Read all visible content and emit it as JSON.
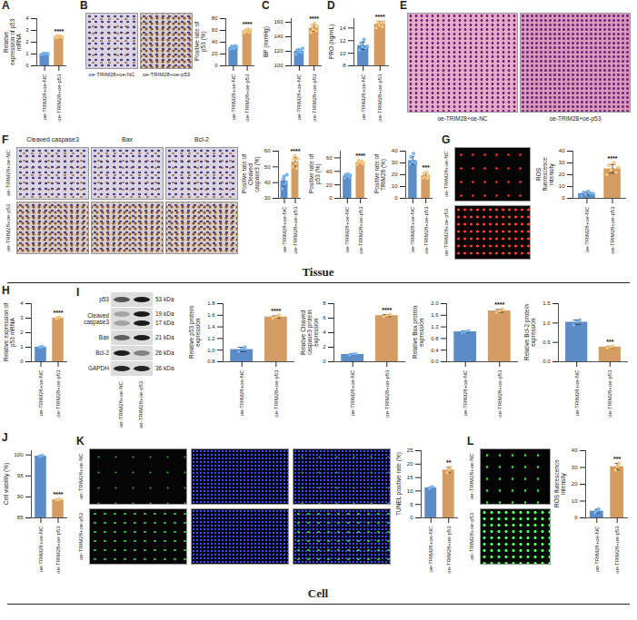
{
  "chart_data": [
    {
      "type": "bar",
      "panel": "A",
      "y_label": "Relative expression of p53 mRNA",
      "categories": [
        "oe-TRIM28+oe-NC",
        "oe-TRIM28+oe-p53"
      ],
      "values": [
        1.0,
        2.45
      ],
      "errors": [
        0.05,
        0.07
      ],
      "points": [
        [
          0.92,
          1.0,
          1.05,
          0.97,
          1.03,
          1.02
        ],
        [
          2.35,
          2.55,
          2.4,
          2.5,
          2.45,
          2.42
        ]
      ],
      "colors": [
        "#5b8cc8",
        "#d49c62"
      ],
      "ylim": [
        0,
        4
      ],
      "yticks": [
        0,
        1,
        2,
        3,
        4
      ],
      "significance": {
        "category": "oe-TRIM28+oe-p53",
        "label": "****"
      }
    },
    {
      "type": "bar",
      "y_label": "Positive rate of p53 (%)",
      "categories": [
        "oe-TRIM28+oe-NC",
        "oe-TRIM28+oe-p53"
      ],
      "values": [
        31,
        59
      ],
      "errors": [
        2.3,
        2.3
      ],
      "points": [
        [
          28,
          33,
          30,
          29,
          34,
          32
        ],
        [
          56,
          60,
          58,
          62,
          57,
          61
        ]
      ],
      "colors": [
        "#5b8cc8",
        "#d49c62"
      ],
      "ylim": [
        0,
        80
      ],
      "yticks": [
        0,
        20,
        40,
        60,
        80
      ],
      "significance": {
        "category": "oe-TRIM28+oe-p53",
        "label": "****"
      }
    },
    {
      "type": "bar",
      "panel": "C",
      "y_label": "BP (mmHg)",
      "categories": [
        "oe-TRIM28+oe-NC",
        "oe-TRIM28+oe-p53"
      ],
      "values": [
        120,
        152
      ],
      "errors": [
        2.8,
        4.5
      ],
      "points": [
        [
          116,
          122,
          119,
          121,
          118,
          124
        ],
        [
          146,
          156,
          150,
          158,
          148,
          154
        ]
      ],
      "colors": [
        "#5b8cc8",
        "#d49c62"
      ],
      "ylim": [
        100,
        165
      ],
      "yticks": [
        100,
        120,
        140,
        160
      ],
      "significance": {
        "category": "oe-TRIM28+oe-p53",
        "label": "****"
      }
    },
    {
      "type": "bar",
      "panel": "D",
      "y_label": "PRO (ng/mL)",
      "categories": [
        "oe-TRIM28+oe-NC",
        "oe-TRIM28+oe-p53"
      ],
      "values": [
        11.2,
        14.6
      ],
      "errors": [
        0.6,
        0.4
      ],
      "points": [
        [
          10.5,
          11.6,
          11.0,
          12.2,
          10.8,
          11.1
        ],
        [
          14.0,
          15.0,
          14.4,
          14.8,
          14.2,
          15.0
        ]
      ],
      "colors": [
        "#5b8cc8",
        "#d49c62"
      ],
      "ylim": [
        8,
        15.5
      ],
      "yticks": [
        8,
        10,
        12,
        14
      ],
      "significance": {
        "category": "oe-TRIM28+oe-p53",
        "label": "****"
      }
    },
    {
      "type": "bar",
      "y_label": "Positive rate of Cleaved caspase3 (%)",
      "categories": [
        "oe-TRIM28+oe-NC",
        "oe-TRIM28+oe-p53"
      ],
      "values": [
        41,
        53
      ],
      "errors": [
        3.2,
        3.0
      ],
      "points": [
        [
          36,
          42,
          44,
          39,
          40,
          45
        ],
        [
          50,
          55,
          57,
          52,
          49,
          55
        ]
      ],
      "colors": [
        "#5b8cc8",
        "#d49c62"
      ],
      "ylim": [
        30,
        60
      ],
      "yticks": [
        30,
        40,
        50,
        60
      ],
      "significance": {
        "category": "oe-TRIM28+oe-p53",
        "label": "****"
      }
    },
    {
      "type": "bar",
      "y_label": "Positive rate of p53 (%)",
      "categories": [
        "oe-TRIM28+oe-NC",
        "oe-TRIM28+oe-p53"
      ],
      "values": [
        33,
        53
      ],
      "errors": [
        2.3,
        2.3
      ],
      "points": [
        [
          30,
          35,
          33,
          36,
          31,
          34
        ],
        [
          50,
          56,
          53,
          55,
          51,
          53
        ]
      ],
      "colors": [
        "#5b8cc8",
        "#d49c62"
      ],
      "ylim": [
        0,
        70
      ],
      "yticks": [
        0,
        20,
        40,
        60
      ],
      "significance": {
        "category": "oe-TRIM28+oe-p53",
        "label": "****"
      }
    },
    {
      "type": "bar",
      "y_label": "Positive rate of TRIM28 (%)",
      "categories": [
        "oe-TRIM28+oe-NC",
        "oe-TRIM28+oe-p53"
      ],
      "values": [
        32,
        19
      ],
      "errors": [
        3.3,
        2.0
      ],
      "points": [
        [
          29,
          35,
          31,
          38,
          30,
          30
        ],
        [
          17,
          21,
          18,
          22,
          17,
          19
        ]
      ],
      "colors": [
        "#5b8cc8",
        "#d49c62"
      ],
      "ylim": [
        0,
        40
      ],
      "yticks": [
        0,
        10,
        20,
        30,
        40
      ],
      "significance": {
        "category": "oe-TRIM28+oe-p53",
        "label": "***"
      }
    },
    {
      "type": "bar",
      "y_label": "ROS fluorescence intensity",
      "categories": [
        "oe-TRIM28+oe-NC",
        "oe-TRIM28+oe-p53"
      ],
      "values": [
        4,
        25
      ],
      "errors": [
        1.4,
        3.7
      ],
      "points": [
        [
          2,
          5,
          3,
          6,
          4,
          4
        ],
        [
          20,
          28,
          24,
          30,
          22,
          26
        ]
      ],
      "colors": [
        "#5b8cc8",
        "#d49c62"
      ],
      "ylim": [
        0,
        40
      ],
      "yticks": [
        0,
        10,
        20,
        30,
        40
      ],
      "significance": {
        "category": "oe-TRIM28+oe-p53",
        "label": "****"
      }
    },
    {
      "type": "bar",
      "panel": "H",
      "y_label": "Relative expression of p53 mRNA",
      "categories": [
        "oe-TRIM28+oe-NC",
        "oe-TRIM28+oe-p53"
      ],
      "values": [
        1.0,
        3.0
      ],
      "errors": [
        0.03,
        0.05
      ],
      "points": [
        [
          0.97,
          1.0,
          1.03
        ],
        [
          2.95,
          3.02,
          3.05
        ]
      ],
      "colors": [
        "#5b8cc8",
        "#d49c62"
      ],
      "ylim": [
        0,
        4
      ],
      "yticks": [
        0,
        1,
        2,
        3,
        4
      ],
      "significance": {
        "category": "oe-TRIM28+oe-p53",
        "label": "****"
      }
    },
    {
      "type": "bar",
      "y_label": "Relative p53 protein expression",
      "categories": [
        "oe-TRIM28+oe-NC",
        "oe-TRIM28+oe-p53"
      ],
      "values": [
        1.01,
        1.57
      ],
      "errors": [
        0.04,
        0.02
      ],
      "points": [
        [
          0.97,
          1.02,
          1.05
        ],
        [
          1.55,
          1.57,
          1.6
        ]
      ],
      "colors": [
        "#5b8cc8",
        "#d49c62"
      ],
      "ylim": [
        0.8,
        1.8
      ],
      "yticks": [
        0.8,
        {
          "value": 1,
          "label": "1.0"
        },
        1.2,
        1.4,
        1.6,
        1.8
      ],
      "significance": {
        "category": "oe-TRIM28+oe-p53",
        "label": "****"
      }
    },
    {
      "type": "bar",
      "y_label": "Relative Cleaved caspase3 protein expression",
      "categories": [
        "oe-TRIM28+oe-NC",
        "oe-TRIM28+oe-p53"
      ],
      "values": [
        1.0,
        6.35
      ],
      "errors": [
        0.08,
        0.15
      ],
      "points": [
        [
          0.9,
          1.05,
          1.05
        ],
        [
          6.2,
          6.35,
          6.5
        ]
      ],
      "colors": [
        "#5b8cc8",
        "#d49c62"
      ],
      "ylim": [
        0,
        8
      ],
      "yticks": [
        0,
        2,
        4,
        6,
        8
      ],
      "significance": {
        "category": "oe-TRIM28+oe-p53",
        "label": "****"
      }
    },
    {
      "type": "bar",
      "y_label": "Relative Bax protein expression",
      "categories": [
        "oe-TRIM28+oe-NC",
        "oe-TRIM28+oe-p53"
      ],
      "values": [
        1.03,
        1.75
      ],
      "errors": [
        0.03,
        0.05
      ],
      "points": [
        [
          1.0,
          1.03,
          1.06
        ],
        [
          1.7,
          1.75,
          1.8
        ]
      ],
      "colors": [
        "#5b8cc8",
        "#d49c62"
      ],
      "ylim": [
        0,
        2
      ],
      "yticks": [
        {
          "value": 0,
          "label": "0.0"
        },
        0.4,
        0.8,
        1.2,
        1.6,
        {
          "value": 2,
          "label": "2.0"
        }
      ],
      "significance": {
        "category": "oe-TRIM28+oe-p53",
        "label": "****"
      }
    },
    {
      "type": "bar",
      "y_label": "Relative Bcl-2 protein expression",
      "categories": [
        "oe-TRIM28+oe-NC",
        "oe-TRIM28+oe-p53"
      ],
      "values": [
        1.02,
        0.38
      ],
      "errors": [
        0.06,
        0.02
      ],
      "points": [
        [
          0.95,
          1.03,
          1.08
        ],
        [
          0.36,
          0.38,
          0.4
        ]
      ],
      "colors": [
        "#5b8cc8",
        "#d49c62"
      ],
      "ylim": [
        0,
        1.5
      ],
      "yticks": [
        {
          "value": 0,
          "label": "0.0"
        },
        0.5,
        {
          "value": 1,
          "label": "1.0"
        },
        1.5
      ],
      "significance": {
        "category": "oe-TRIM28+oe-p53",
        "label": "***"
      }
    },
    {
      "type": "bar",
      "panel": "J",
      "y_label": "Cell viability (%)",
      "categories": [
        "oe-TRIM28+oe-NC",
        "oe-TRIM28+oe-p53"
      ],
      "values": [
        99.7,
        89.3
      ],
      "errors": [
        0.1,
        0.1
      ],
      "points": [
        [
          99.6,
          99.7,
          99.8
        ],
        [
          89.2,
          89.3,
          89.4
        ]
      ],
      "colors": [
        "#5b8cc8",
        "#d49c62"
      ],
      "ylim": [
        85,
        101
      ],
      "yticks": [
        85,
        90,
        95,
        100
      ],
      "significance": {
        "category": "oe-TRIM28+oe-p53",
        "label": "****"
      }
    },
    {
      "type": "bar",
      "y_label": "TUNEL positive rate (%)",
      "categories": [
        "oe-TRIM28+oe-NC",
        "oe-TRIM28+oe-p53"
      ],
      "values": [
        11.2,
        17.8
      ],
      "errors": [
        0.3,
        1.0
      ],
      "points": [
        [
          10.9,
          11.2,
          11.5
        ],
        [
          16.8,
          17.8,
          18.8
        ]
      ],
      "colors": [
        "#5b8cc8",
        "#d49c62"
      ],
      "ylim": [
        0,
        25
      ],
      "yticks": [
        0,
        5,
        10,
        15,
        20,
        25
      ],
      "significance": {
        "category": "oe-TRIM28+oe-p53",
        "label": "**"
      }
    },
    {
      "type": "bar",
      "y_label": "ROS fluorescence intensity",
      "categories": [
        "oe-TRIM28+oe-NC",
        "oe-TRIM28+oe-p53"
      ],
      "values": [
        4,
        30.5
      ],
      "errors": [
        1.1,
        2.0
      ],
      "points": [
        [
          3,
          4,
          5.2
        ],
        [
          28.5,
          30.5,
          32.5
        ]
      ],
      "colors": [
        "#5b8cc8",
        "#d49c62"
      ],
      "ylim": [
        0,
        40
      ],
      "yticks": [
        0,
        10,
        20,
        30,
        40
      ],
      "significance": {
        "category": "oe-TRIM28+oe-p53",
        "label": "***"
      }
    }
  ],
  "image_panels": [
    {
      "panel": "B",
      "labels": [
        "oe-TRIM28+oe-NC",
        "oe-TRIM28+oe-p53"
      ]
    },
    {
      "panel": "E",
      "labels": [
        "oe-TRIM28+oe-NC",
        "oe-TRIM28+oe-p53"
      ]
    },
    {
      "panel": "F",
      "columns": [
        "Cleaved caspase3",
        "Bax",
        "Bcl-2"
      ],
      "rows": [
        "oe-TRIM28+oe-NC",
        "oe-TRIM28+oe-p53"
      ]
    },
    {
      "panel": "G",
      "rows": [
        "oe-TRIM28+oe-NC",
        "oe-TRIM28+oe-p53"
      ]
    },
    {
      "panel": "K",
      "rows": [
        "oe-TRIM28+oe-NC",
        "oe-TRIM28+oe-p53"
      ]
    },
    {
      "panel": "L",
      "rows": [
        "oe-TRIM28+oe-NC",
        "oe-TRIM28+oe-p53"
      ]
    }
  ],
  "blot": {
    "panel": "I",
    "rows": [
      {
        "label": "p53",
        "kda": [
          "53 kDa"
        ]
      },
      {
        "label": "Cleaved caspase3",
        "kda": [
          "19 kDa",
          "17 kDa"
        ]
      },
      {
        "label": "Bax",
        "kda": [
          "21 kDa"
        ]
      },
      {
        "label": "Bcl-2",
        "kda": [
          "26 kDa"
        ]
      },
      {
        "label": "GAPDH",
        "kda": [
          "36 kDa"
        ]
      }
    ],
    "lanes": [
      "oe-TRIM28+oe-NC",
      "oe-TRIM28+oe-p53"
    ]
  },
  "sections": [
    "Tissue",
    "Cell"
  ]
}
